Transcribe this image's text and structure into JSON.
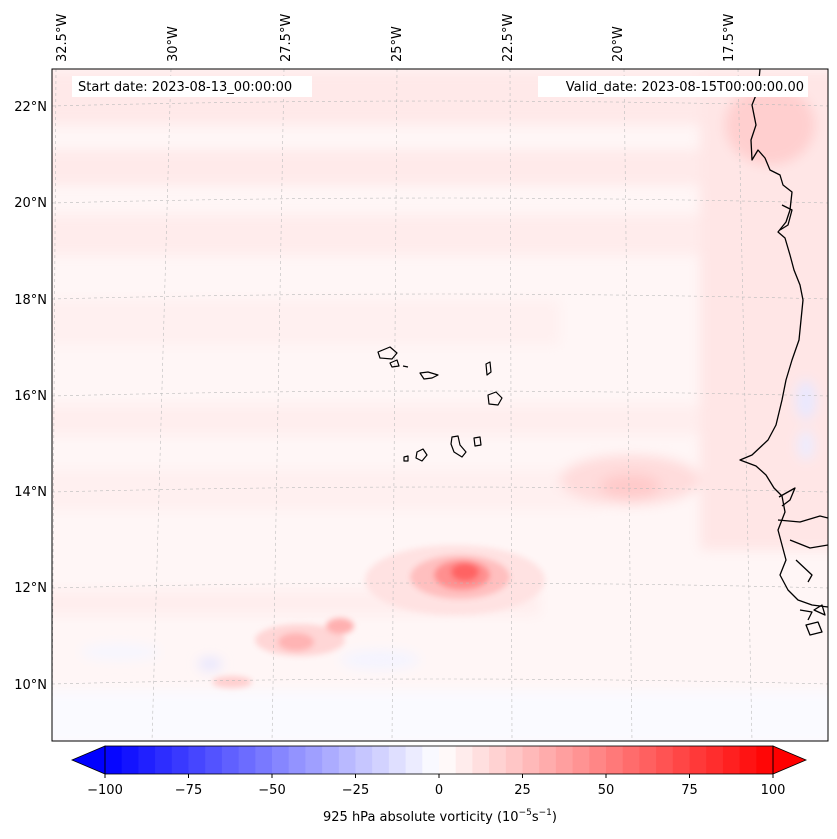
{
  "map": {
    "start_date": "Start date: 2023-08-13_00:00:00",
    "valid_date": "Valid_date: 2023-08-15T00:00:00.00",
    "lon_labels": [
      "32.5°W",
      "30°W",
      "27.5°W",
      "25°W",
      "22.5°W",
      "20°W",
      "17.5°W"
    ],
    "lat_labels": [
      "22°N",
      "20°N",
      "18°N",
      "16°N",
      "14°N",
      "12°N",
      "10°N"
    ],
    "colorbar": {
      "label_prefix": "925 hPa absolute vorticity (10",
      "label_exp1": "−5",
      "label_mid": "s",
      "label_exp2": "−1",
      "label_suffix": ")",
      "tick_labels": [
        "−100",
        "−75",
        "−50",
        "−25",
        "0",
        "25",
        "50",
        "75",
        "100"
      ],
      "vmin": -100,
      "vmax": 100,
      "step": 5,
      "colormap": "bwr"
    },
    "colors": {
      "positive": "#ff0000",
      "negative": "#0000ff",
      "coast": "#000000",
      "grid": "#bbbbbb"
    }
  }
}
